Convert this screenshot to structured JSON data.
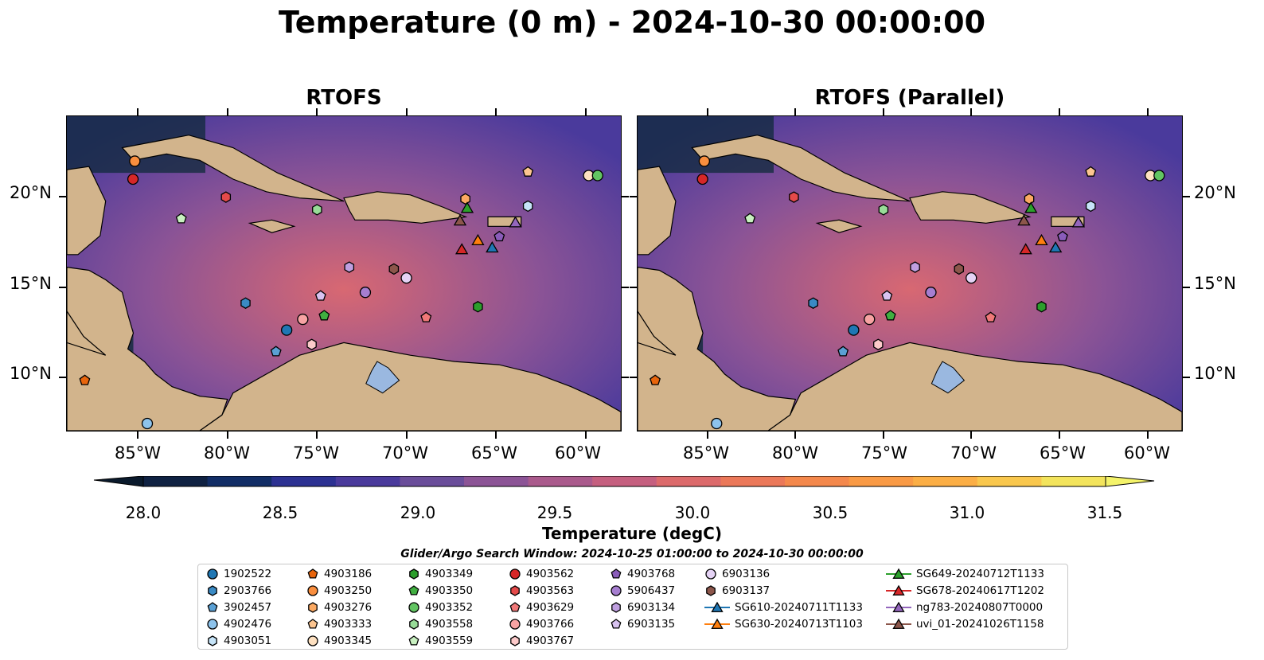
{
  "title": "Temperature (0 m) - 2024-10-30 00:00:00",
  "panels": [
    {
      "title": "RTOFS"
    },
    {
      "title": "RTOFS (Parallel)"
    }
  ],
  "lat_labels": [
    "20°N",
    "15°N",
    "10°N"
  ],
  "lon_labels": [
    "85°W",
    "80°W",
    "75°W",
    "70°W",
    "65°W",
    "60°W"
  ],
  "colorbar": {
    "label": "Temperature (degC)",
    "ticks": [
      "28.0",
      "28.5",
      "29.0",
      "29.5",
      "30.0",
      "30.5",
      "31.0",
      "31.5"
    ],
    "range": [
      28.0,
      31.5
    ],
    "colors": [
      "#0f2142",
      "#122d66",
      "#2c3192",
      "#4a3a9c",
      "#6a4d9a",
      "#8c5496",
      "#aa5a8c",
      "#c55f7f",
      "#dc6a6b",
      "#eb7859",
      "#f4884c",
      "#f99a45",
      "#fbae45",
      "#f9c74d",
      "#f3e45c"
    ],
    "under_color": "#0a1a2c",
    "over_color": "#f4f36a"
  },
  "map_colors": {
    "land": "#d2b48c",
    "lake": "#9ab8e0",
    "river": "#9fb4cc",
    "ocean_mid": "#8a5396",
    "ocean_warm": "#d86872",
    "ocean_cool": "#4a3a9c",
    "ocean_cold": "#0f2a3a"
  },
  "search_window": "Glider/Argo Search Window: 2024-10-25 01:00:00 to 2024-10-30 00:00:00",
  "legend": [
    {
      "label": "1902522",
      "marker": "circle",
      "color": "#1f77b4"
    },
    {
      "label": "2903766",
      "marker": "hexagon",
      "color": "#3a8ac4"
    },
    {
      "label": "3902457",
      "marker": "pentagon",
      "color": "#5aa0d4"
    },
    {
      "label": "4902476",
      "marker": "circle",
      "color": "#8dc3ec"
    },
    {
      "label": "4903051",
      "marker": "hexagon",
      "color": "#c6e4f8"
    },
    {
      "label": "4903186",
      "marker": "pentagon",
      "color": "#e8650c"
    },
    {
      "label": "4903250",
      "marker": "circle",
      "color": "#f98e3e"
    },
    {
      "label": "4903276",
      "marker": "hexagon",
      "color": "#fba962"
    },
    {
      "label": "4903333",
      "marker": "pentagon",
      "color": "#fcc590"
    },
    {
      "label": "4903345",
      "marker": "circle",
      "color": "#fde0c0"
    },
    {
      "label": "4903349",
      "marker": "hexagon",
      "color": "#2c9e2c"
    },
    {
      "label": "4903350",
      "marker": "pentagon",
      "color": "#40ae40"
    },
    {
      "label": "4903352",
      "marker": "circle",
      "color": "#62c462"
    },
    {
      "label": "4903558",
      "marker": "hexagon",
      "color": "#98dc98"
    },
    {
      "label": "4903559",
      "marker": "pentagon",
      "color": "#c8f0c0"
    },
    {
      "label": "4903562",
      "marker": "circle",
      "color": "#d62728"
    },
    {
      "label": "4903563",
      "marker": "hexagon",
      "color": "#e44a4a"
    },
    {
      "label": "4903629",
      "marker": "pentagon",
      "color": "#f07878"
    },
    {
      "label": "4903766",
      "marker": "circle",
      "color": "#f7a3a3"
    },
    {
      "label": "4903767",
      "marker": "hexagon",
      "color": "#fccaca"
    },
    {
      "label": "4903768",
      "marker": "pentagon",
      "color": "#8a5cba"
    },
    {
      "label": "5906437",
      "marker": "circle",
      "color": "#a67ed0"
    },
    {
      "label": "6903134",
      "marker": "hexagon",
      "color": "#bf9fe0"
    },
    {
      "label": "6903135",
      "marker": "pentagon",
      "color": "#d8c2f0"
    },
    {
      "label": "6903136",
      "marker": "circle",
      "color": "#e5d3f5"
    },
    {
      "label": "6903137",
      "marker": "hexagon",
      "color": "#8c564b"
    },
    {
      "label": "SG610-20240711T1133",
      "marker": "triangle-line",
      "color": "#1f77b4"
    },
    {
      "label": "SG630-20240713T1103",
      "marker": "triangle-line",
      "color": "#ff7f0e"
    },
    {
      "label": "SG649-20240712T1133",
      "marker": "triangle-line",
      "color": "#2ca02c"
    },
    {
      "label": "SG678-20240617T1202",
      "marker": "triangle-line",
      "color": "#d62728"
    },
    {
      "label": "ng783-20240807T0000",
      "marker": "triangle-line",
      "color": "#9467bd"
    },
    {
      "label": "uvi_01-20241026T1158",
      "marker": "triangle-line",
      "color": "#8c564b"
    }
  ],
  "map_extent": {
    "lon": [
      -89,
      -58
    ],
    "lat": [
      7,
      24.5
    ]
  },
  "observations": [
    {
      "id": "1902522",
      "lon": -76.7,
      "lat": 12.6
    },
    {
      "id": "2903766",
      "lon": -79.0,
      "lat": 14.1
    },
    {
      "id": "3902457",
      "lon": -77.3,
      "lat": 11.4
    },
    {
      "id": "4902476",
      "lon": -84.5,
      "lat": 7.4
    },
    {
      "id": "4903051",
      "lon": -63.2,
      "lat": 19.5
    },
    {
      "id": "4903186",
      "lon": -88.0,
      "lat": 9.8
    },
    {
      "id": "4903250",
      "lon": -85.2,
      "lat": 22.0
    },
    {
      "id": "4903276",
      "lon": -66.7,
      "lat": 19.9
    },
    {
      "id": "4903333",
      "lon": -63.2,
      "lat": 21.4
    },
    {
      "id": "4903345",
      "lon": -59.8,
      "lat": 21.2
    },
    {
      "id": "4903349",
      "lon": -66.0,
      "lat": 13.9
    },
    {
      "id": "4903350",
      "lon": -74.6,
      "lat": 13.4
    },
    {
      "id": "4903352",
      "lon": -59.3,
      "lat": 21.2
    },
    {
      "id": "4903558",
      "lon": -75.0,
      "lat": 19.3
    },
    {
      "id": "4903559",
      "lon": -82.6,
      "lat": 18.8
    },
    {
      "id": "4903562",
      "lon": -85.3,
      "lat": 21.0
    },
    {
      "id": "4903563",
      "lon": -80.1,
      "lat": 20.0
    },
    {
      "id": "4903629",
      "lon": -68.9,
      "lat": 13.3
    },
    {
      "id": "4903766",
      "lon": -75.8,
      "lat": 13.2
    },
    {
      "id": "4903767",
      "lon": -75.3,
      "lat": 11.8
    },
    {
      "id": "4903768",
      "lon": -64.8,
      "lat": 17.8
    },
    {
      "id": "5906437",
      "lon": -72.3,
      "lat": 14.7
    },
    {
      "id": "6903134",
      "lon": -73.2,
      "lat": 16.1
    },
    {
      "id": "6903135",
      "lon": -74.8,
      "lat": 14.5
    },
    {
      "id": "6903136",
      "lon": -70.0,
      "lat": 15.5
    },
    {
      "id": "6903137",
      "lon": -70.7,
      "lat": 16.0
    },
    {
      "id": "SG610-20240711T1133",
      "lon": -65.2,
      "lat": 17.2
    },
    {
      "id": "SG630-20240713T1103",
      "lon": -66.0,
      "lat": 17.6
    },
    {
      "id": "SG649-20240712T1133",
      "lon": -66.6,
      "lat": 19.4
    },
    {
      "id": "SG678-20240617T1202",
      "lon": -66.9,
      "lat": 17.1
    },
    {
      "id": "ng783-20240807T0000",
      "lon": -63.9,
      "lat": 18.6
    },
    {
      "id": "uvi_01-20241026T1158",
      "lon": -67.0,
      "lat": 18.7
    }
  ]
}
